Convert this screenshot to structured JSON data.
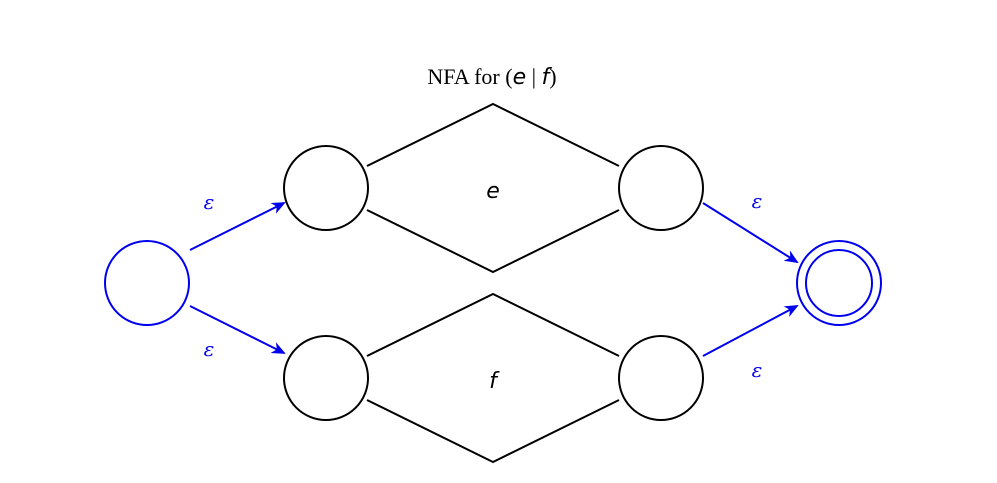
{
  "title": {
    "prefix": "NFA for (",
    "left_operand": "e",
    "separator": " | ",
    "right_operand": "f",
    "suffix": ")"
  },
  "subautomata": {
    "upper_label": "e",
    "lower_label": "f"
  },
  "transitions": {
    "start_to_upper": "ε",
    "start_to_lower": "ε",
    "upper_to_accept": "ε",
    "lower_to_accept": "ε"
  },
  "colors": {
    "accent": "#0000ee",
    "stroke": "#000000",
    "background": "#ffffff"
  }
}
